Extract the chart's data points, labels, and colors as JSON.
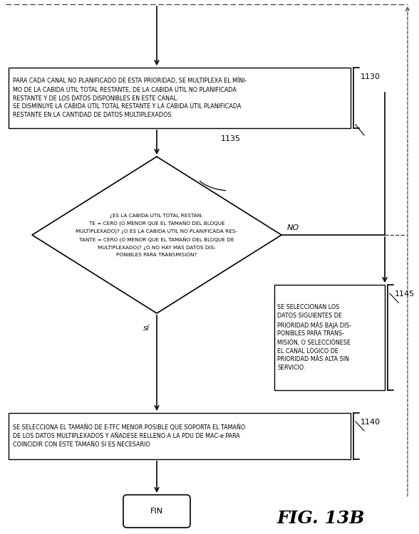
{
  "background_color": "#ffffff",
  "fig_width": 5.88,
  "fig_height": 7.5,
  "dpi": 100,
  "title_text": "FIG. 13B",
  "box1130_text": "PARA CADA CANAL NO PLANIFICADO DE ESTA PRIORIDAD, SE MULTIPLEXA EL MÍNI-\nMO DE LA CABIDA ÚTIL TOTAL RESTANTE, DE LA CABIDA ÚTIL NO PLANIFICADA\nRESTANTE Y DE LOS DATOS DISPONIBLES EN ESTE CANAL.\nSE DISMINUYE LA CABIDA ÚTIL TOTAL RESTANTE Y LA CABIDA ÚTIL PLANIFICADA\nRESTANTE EN LA CANTIDAD DE DATOS MULTIPLEXADOS.",
  "box1130_label": "1130",
  "diamond1135_text": "¿ES LA CABIDA ÚTIL TOTAL RESTAN-\nTE = CERO (O MENOR QUE EL TAMAÑO DEL BLOQUE\nMULTIPLEXADO)? ¿O ES LA CABIDA ÚTIL NO PLANIFICADA RES-\nTANTE = CERO (O MENOR QUE EL TAMAÑO DEL BLOQUE DE\nMULTIPLEXADO)? ¿O NO HAY MÁS DATOS DIS-\nPONIBLES PARA TRANSMISIÓN?",
  "diamond1135_label": "1135",
  "box1145_text": "SE SELECCIONAN LOS\nDATOS SIGUIENTES DE\nPRIORIDAD MÁS BAJA DIS-\nPONIBLES PARA TRANS-\nMISIÓN, O SELECCIÓNESE\nEL CANAL LÓGICO DE\nPRIORIDAD MÁS ALTA SIN\nSERVICIO.",
  "box1145_label": "1145",
  "box1140_text": "SE SELECCIONA EL TAMAÑO DE E-TFC MENOR POSIBLE QUE SOPORTA EL TAMAÑO\nDE LOS DATOS MULTIPLEXADOS Y AÑADESE RELLENO A LA PDU DE MAC-e PARA\nCOINCIDIR CON ESTE TAMAÑO SI ES NECESARIO",
  "box1140_label": "1140",
  "fin_text": "FIN",
  "no_label": "NO",
  "si_label": "sí",
  "font_size_box": 5.8,
  "font_size_label": 8,
  "font_size_title": 18,
  "font_size_fin": 8,
  "font_size_si_no": 8,
  "line_color": "#000000",
  "fill_color": "#ffffff",
  "text_color": "#000000",
  "dashed_color": "#555555"
}
